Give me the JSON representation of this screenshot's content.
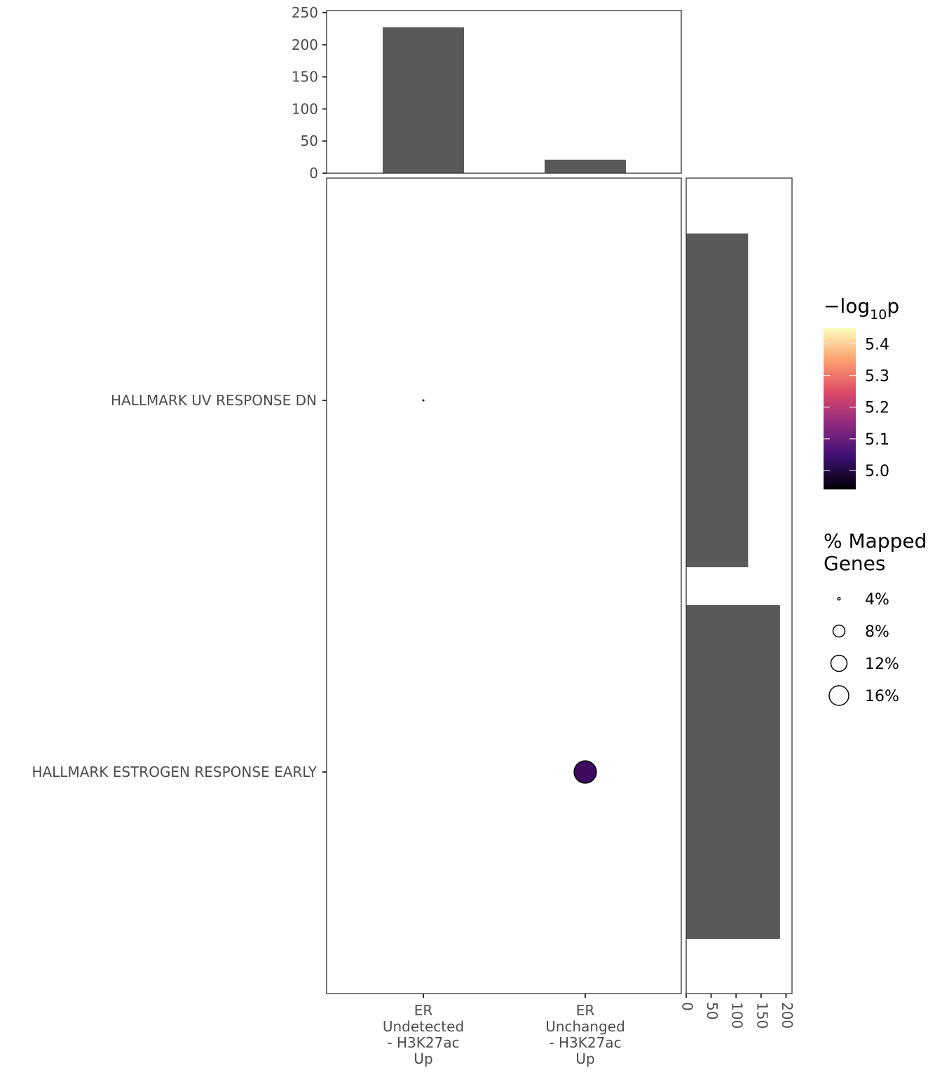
{
  "chart_data": [
    {
      "type": "scatter",
      "panel": "main",
      "x_categories": [
        [
          "ER",
          "Undetected",
          "- H3K27ac",
          "Up"
        ],
        [
          "ER",
          "Unchanged",
          "- H3K27ac",
          "Up"
        ]
      ],
      "y_categories": [
        "HALLMARK UV RESPONSE DN",
        "HALLMARK ESTROGEN RESPONSE EARLY"
      ],
      "points": [
        {
          "x": 0,
          "y": "HALLMARK UV RESPONSE DN",
          "percent_mapped": 3.5,
          "neg_log10_p": null
        },
        {
          "x": 1,
          "y": "HALLMARK ESTROGEN RESPONSE EARLY",
          "percent_mapped": 16,
          "neg_log10_p": 4.95,
          "color": "#3d0a5e"
        }
      ]
    },
    {
      "type": "bar",
      "panel": "top",
      "categories": [
        "ER Undetected - H3K27ac Up",
        "ER Unchanged - H3K27ac Up"
      ],
      "values": [
        227,
        21
      ],
      "ylim": [
        0,
        250
      ],
      "yticks": [
        "0",
        "50",
        "100",
        "150",
        "200",
        "250"
      ]
    },
    {
      "type": "bar",
      "panel": "right",
      "orientation": "horizontal",
      "categories": [
        "HALLMARK UV RESPONSE DN",
        "HALLMARK ESTROGEN RESPONSE EARLY"
      ],
      "values": [
        124,
        188
      ],
      "xlim": [
        0,
        212
      ],
      "xticks": [
        "0",
        "50",
        "100",
        "150",
        "200"
      ]
    }
  ],
  "legends": {
    "color": {
      "title_prefix": "−log",
      "title_sub": "10",
      "title_suffix": "p",
      "ticks": [
        "5.0",
        "5.1",
        "5.2",
        "5.3",
        "5.4"
      ],
      "range": [
        4.94,
        5.45
      ],
      "colors": [
        "#000004",
        "#3b0f70",
        "#8c2981",
        "#de4968",
        "#fe9f6d",
        "#fcfdbf"
      ]
    },
    "size": {
      "title_line1": "% Mapped",
      "title_line2": "Genes",
      "items": [
        {
          "label": "4%",
          "value": 4
        },
        {
          "label": "8%",
          "value": 8
        },
        {
          "label": "12%",
          "value": 12
        },
        {
          "label": "16%",
          "value": 16
        }
      ]
    }
  },
  "colors": {
    "bar": "#595959",
    "panel_border": "#333333",
    "tick_text": "#4d4d4d"
  }
}
